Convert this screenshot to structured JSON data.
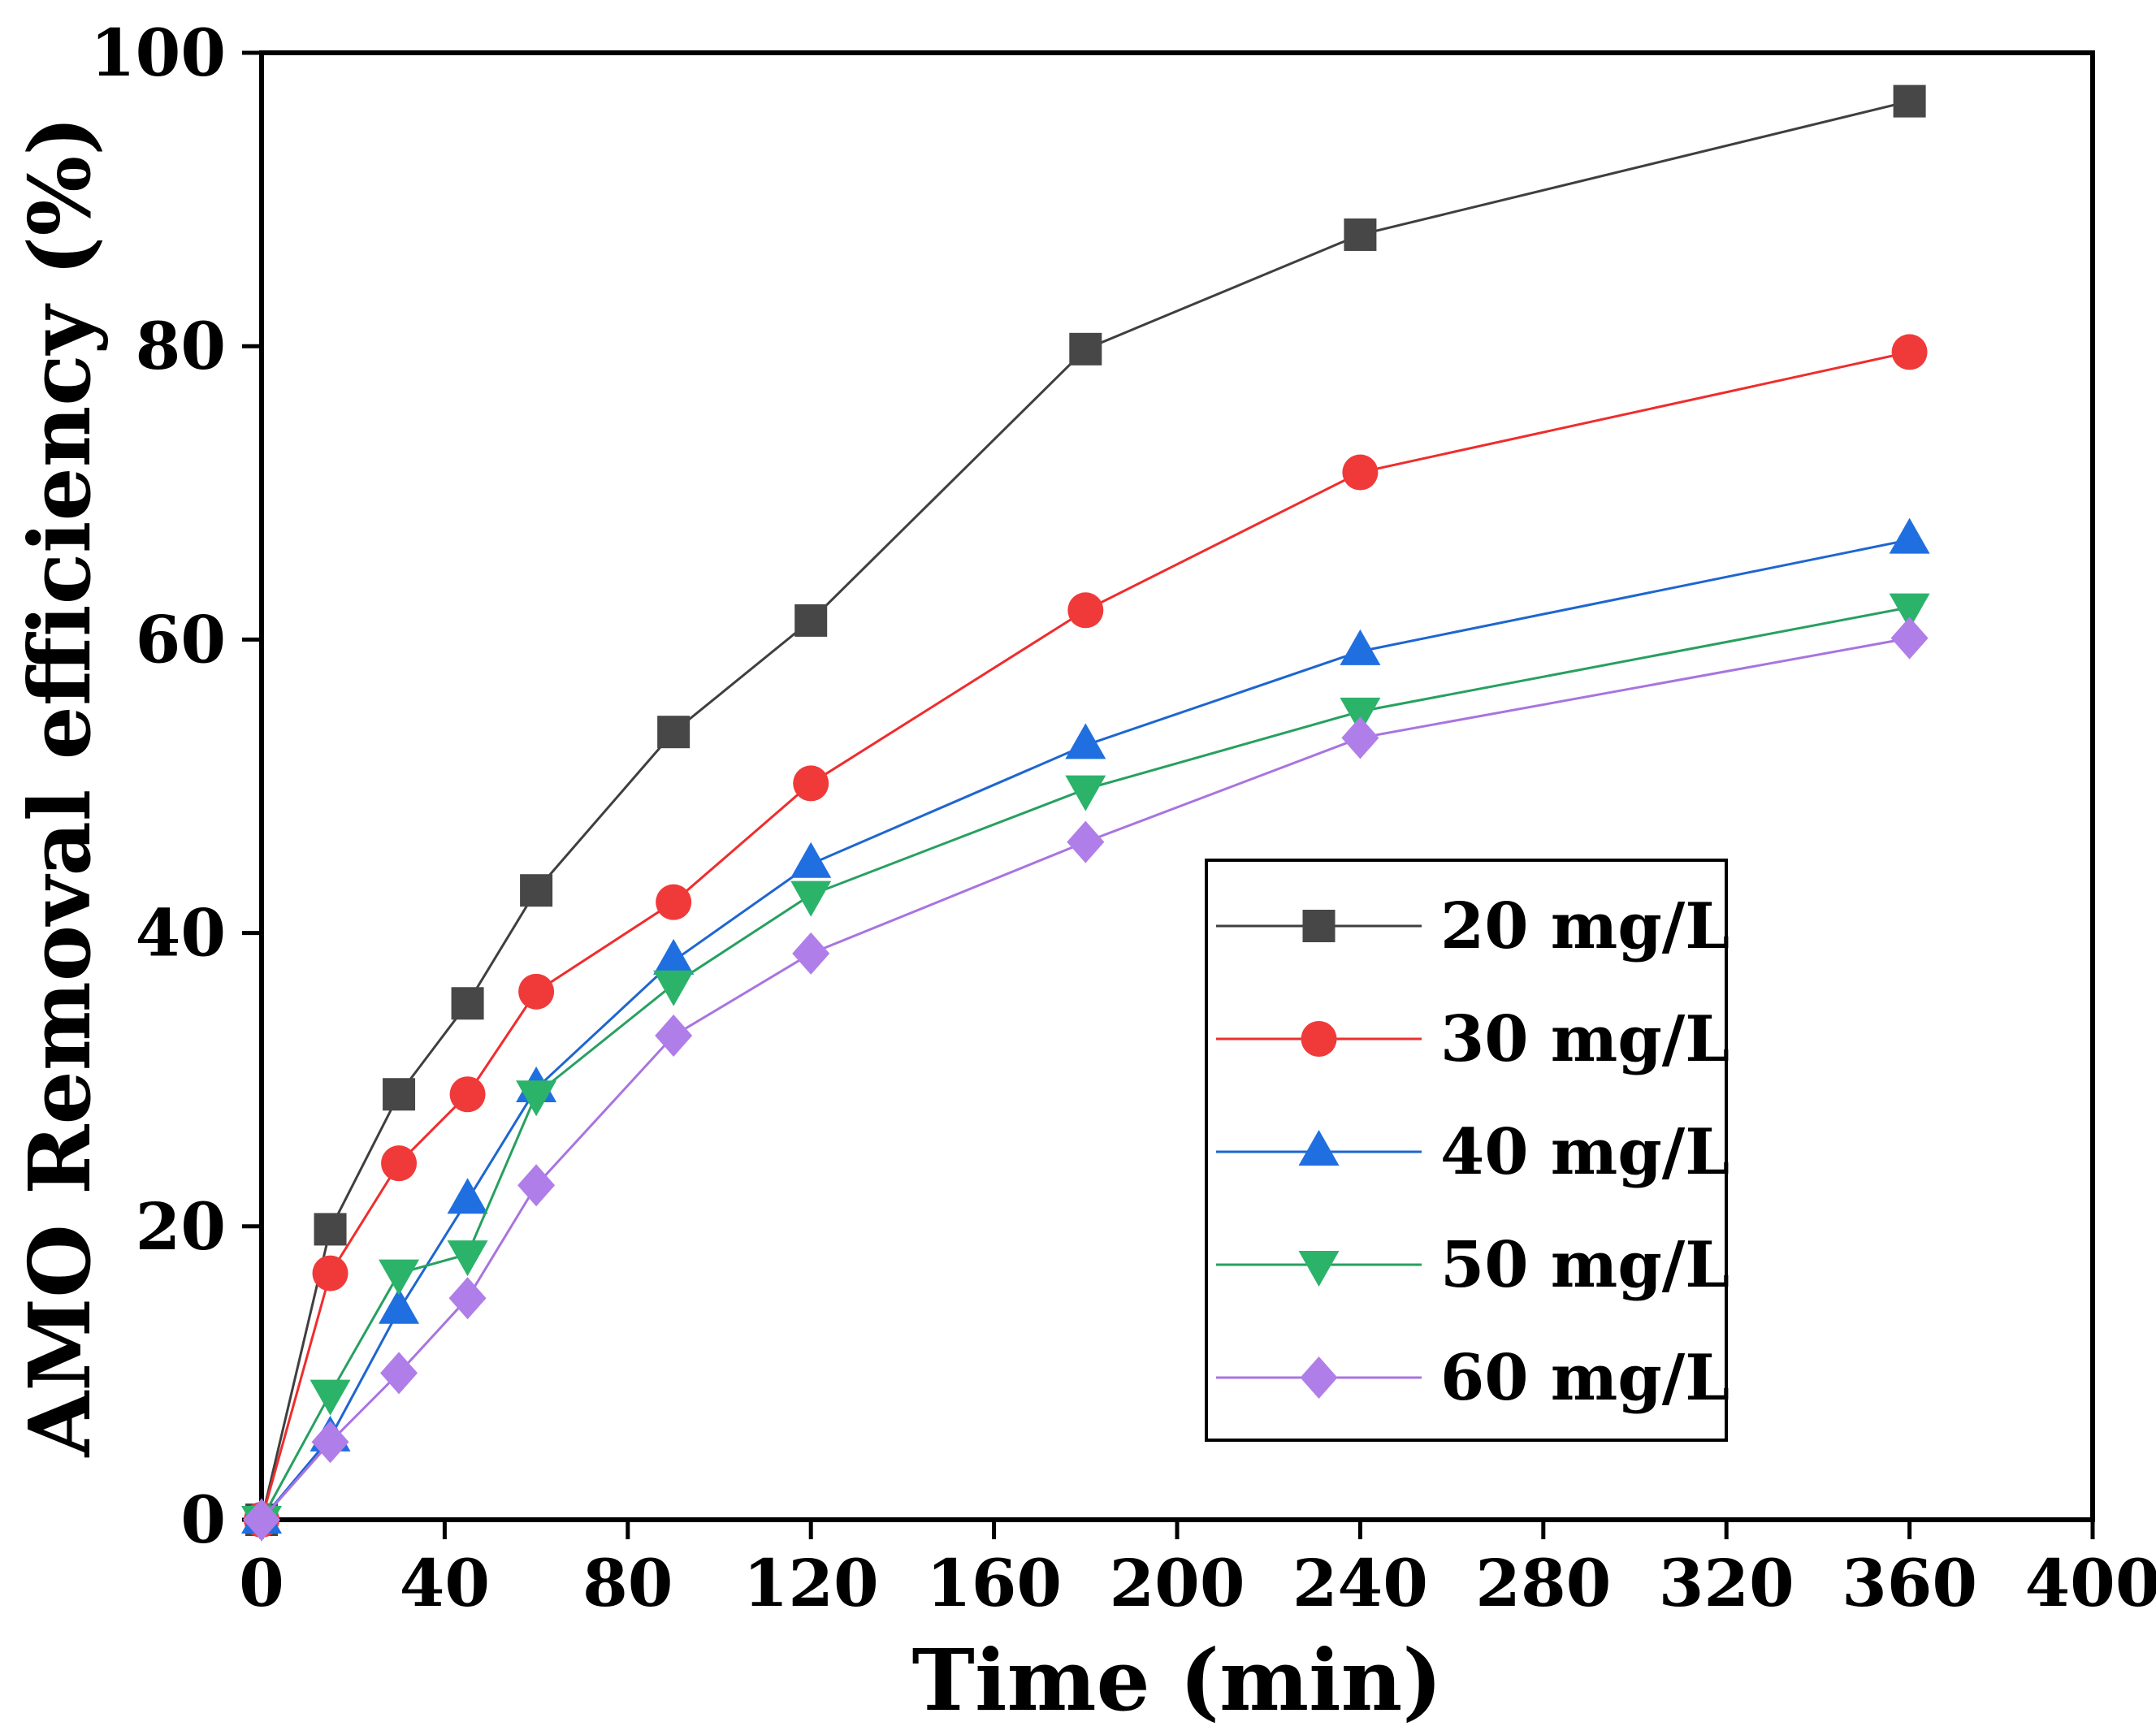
{
  "chart_data": {
    "type": "line",
    "title": "",
    "xlabel": "Time (min)",
    "ylabel": "AMO Removal efficiency (%)",
    "xlim": [
      0,
      400
    ],
    "ylim": [
      0,
      100
    ],
    "x_ticks": [
      0,
      40,
      80,
      120,
      160,
      200,
      240,
      280,
      320,
      360,
      400
    ],
    "y_ticks": [
      0,
      20,
      40,
      60,
      80,
      100
    ],
    "x": [
      0,
      15,
      30,
      45,
      60,
      90,
      120,
      180,
      240,
      360
    ],
    "legend_position": "center-right",
    "grid": false,
    "series": [
      {
        "name": "20 mg/L",
        "marker": "square",
        "color": "#3f3f3f",
        "markerColor": "#474747",
        "values": [
          0,
          19.8,
          29.0,
          35.2,
          42.9,
          53.7,
          61.3,
          79.8,
          87.6,
          96.7
        ]
      },
      {
        "name": "30 mg/L",
        "marker": "circle",
        "color": "#ef2d2d",
        "markerColor": "#f03a3a",
        "values": [
          0,
          16.8,
          24.3,
          29.0,
          36.0,
          42.1,
          50.2,
          62.0,
          71.4,
          79.6
        ]
      },
      {
        "name": "40 mg/L",
        "marker": "triangle-up",
        "color": "#1e66d0",
        "markerColor": "#1f6fe0",
        "values": [
          0,
          5.6,
          14.3,
          21.8,
          29.4,
          38.1,
          44.7,
          52.8,
          59.2,
          66.8
        ]
      },
      {
        "name": "50 mg/L",
        "marker": "triangle-down",
        "color": "#27a060",
        "markerColor": "#2bb36a",
        "values": [
          0,
          8.6,
          16.8,
          18.1,
          29.0,
          36.5,
          42.6,
          49.8,
          55.1,
          62.2
        ]
      },
      {
        "name": "60 mg/L",
        "marker": "diamond",
        "color": "#a874e0",
        "markerColor": "#b07ee8",
        "values": [
          0,
          5.3,
          10.0,
          15.1,
          22.8,
          33.0,
          38.6,
          46.2,
          53.3,
          60.1
        ]
      }
    ]
  }
}
